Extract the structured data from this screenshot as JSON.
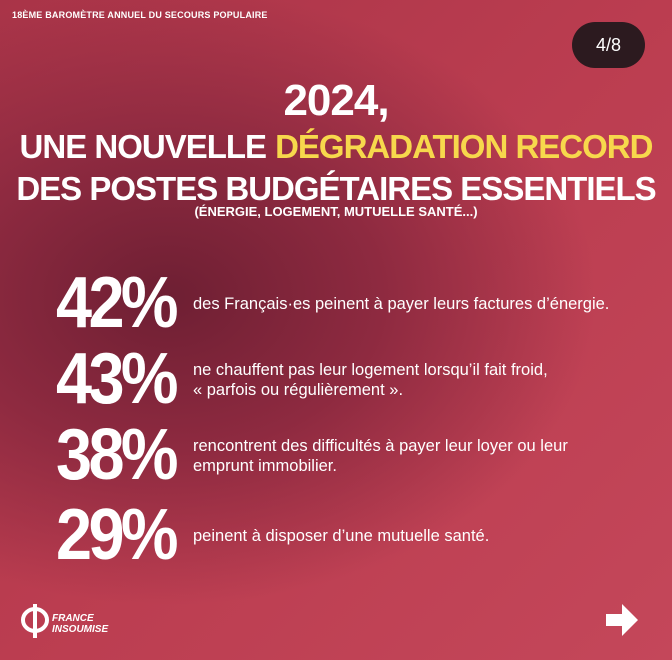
{
  "header": {
    "kicker": "18ÈME BAROMÈTRE ANNUEL DU SECOURS POPULAIRE",
    "page_indicator": "4/8"
  },
  "title": {
    "line1": "2024,",
    "line2_plain": "UNE NOUVELLE",
    "line2_highlight": "DÉGRADATION RECORD",
    "line3": "DES POSTES BUDGÉTAIRES ESSENTIELS",
    "subtitle": "(ÉNERGIE, LOGEMENT, MUTUELLE SANTÉ...)"
  },
  "stats": [
    {
      "percent": "42%",
      "lines": [
        "des Français·es peinent à payer leurs factures d’énergie."
      ]
    },
    {
      "percent": "43%",
      "lines": [
        "ne chauffent pas leur logement lorsqu’il fait froid,",
        "« parfois ou régulièrement »."
      ]
    },
    {
      "percent": "38%",
      "lines": [
        "rencontrent des difficultés à payer leur loyer ou leur",
        "emprunt immobilier."
      ]
    },
    {
      "percent": "29%",
      "lines": [
        "peinent à disposer d’une mutuelle santé."
      ]
    }
  ],
  "logo": {
    "lines": [
      "FRANCE",
      "INSOUMISE"
    ]
  }
}
